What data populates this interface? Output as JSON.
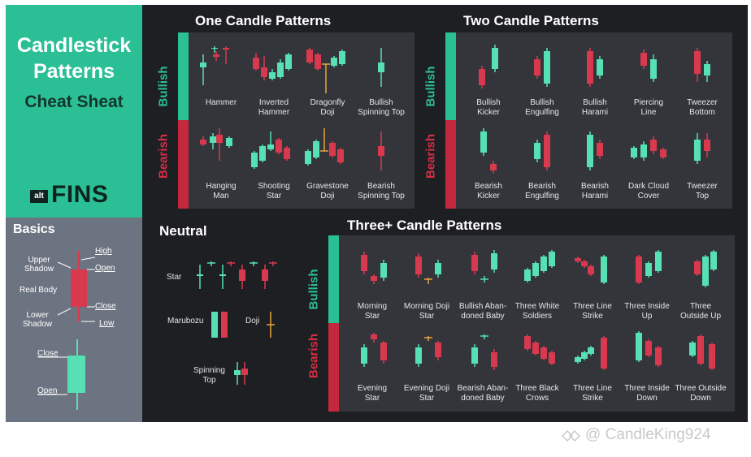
{
  "title": {
    "line1": "Candlestick",
    "line2": "Patterns",
    "line3": "Cheat Sheat"
  },
  "logo": {
    "prefix": "alt",
    "name": "FINS"
  },
  "basics": {
    "title": "Basics",
    "labels": {
      "high": "High",
      "open": "Open",
      "upper_shadow": "Upper\nShadow",
      "real_body": "Real Body",
      "close": "Close",
      "lower_shadow": "Lower\nShadow",
      "low": "Low",
      "close2": "Close",
      "open2": "Open"
    }
  },
  "sections": {
    "one": "One Candle Patterns",
    "two": "Two Candle Patterns",
    "three": "Three+ Candle Patterns",
    "neutral": "Neutral"
  },
  "sides": {
    "bullish": "Bullish",
    "bearish": "Bearish"
  },
  "one_candle": {
    "bullish": [
      "Hammer",
      "Inverted\nHammer",
      "Dragonfly\nDoji",
      "Bullish\nSpinning Top"
    ],
    "bearish": [
      "Hanging\nMan",
      "Shooting\nStar",
      "Gravestone\nDoji",
      "Bearish\nSpinning Top"
    ]
  },
  "two_candle": {
    "bullish": [
      "Bullish\nKicker",
      "Bullish\nEngulfing",
      "Bullish\nHarami",
      "Piercing\nLine",
      "Tweezer\nBottom"
    ],
    "bearish": [
      "Bearish\nKicker",
      "Bearish\nEngulfing",
      "Bearish\nHarami",
      "Dark Cloud\nCover",
      "Tweezer\nTop"
    ]
  },
  "three_candle": {
    "bullish": [
      "Morning\nStar",
      "Morning Doji\nStar",
      "Bullish Aban-\ndoned Baby",
      "Three White\nSoldiers",
      "Three Line\nStrike",
      "Three Inside\nUp",
      "Three\nOutside Up"
    ],
    "bearish": [
      "Evening\nStar",
      "Evening Doji\nStar",
      "Bearish Aban-\ndoned Baby",
      "Three Black\nCrows",
      "Three Line\nStrike",
      "Three Inside\nDown",
      "Three Outside\nDown"
    ]
  },
  "neutral": {
    "star": "Star",
    "marubozu": "Marubozu",
    "doji": "Doji",
    "spinning_top": "Spinning\nTop"
  },
  "watermark": "@ CandleKing924",
  "colors": {
    "green": "#2bbf96",
    "red": "#c4283c",
    "panel": "#33353b",
    "bg": "#1e1f23",
    "basics": "#6d7481",
    "candle_green": "#56e0b3",
    "candle_red": "#d9394f",
    "wick_orange": "#e8a33d"
  }
}
